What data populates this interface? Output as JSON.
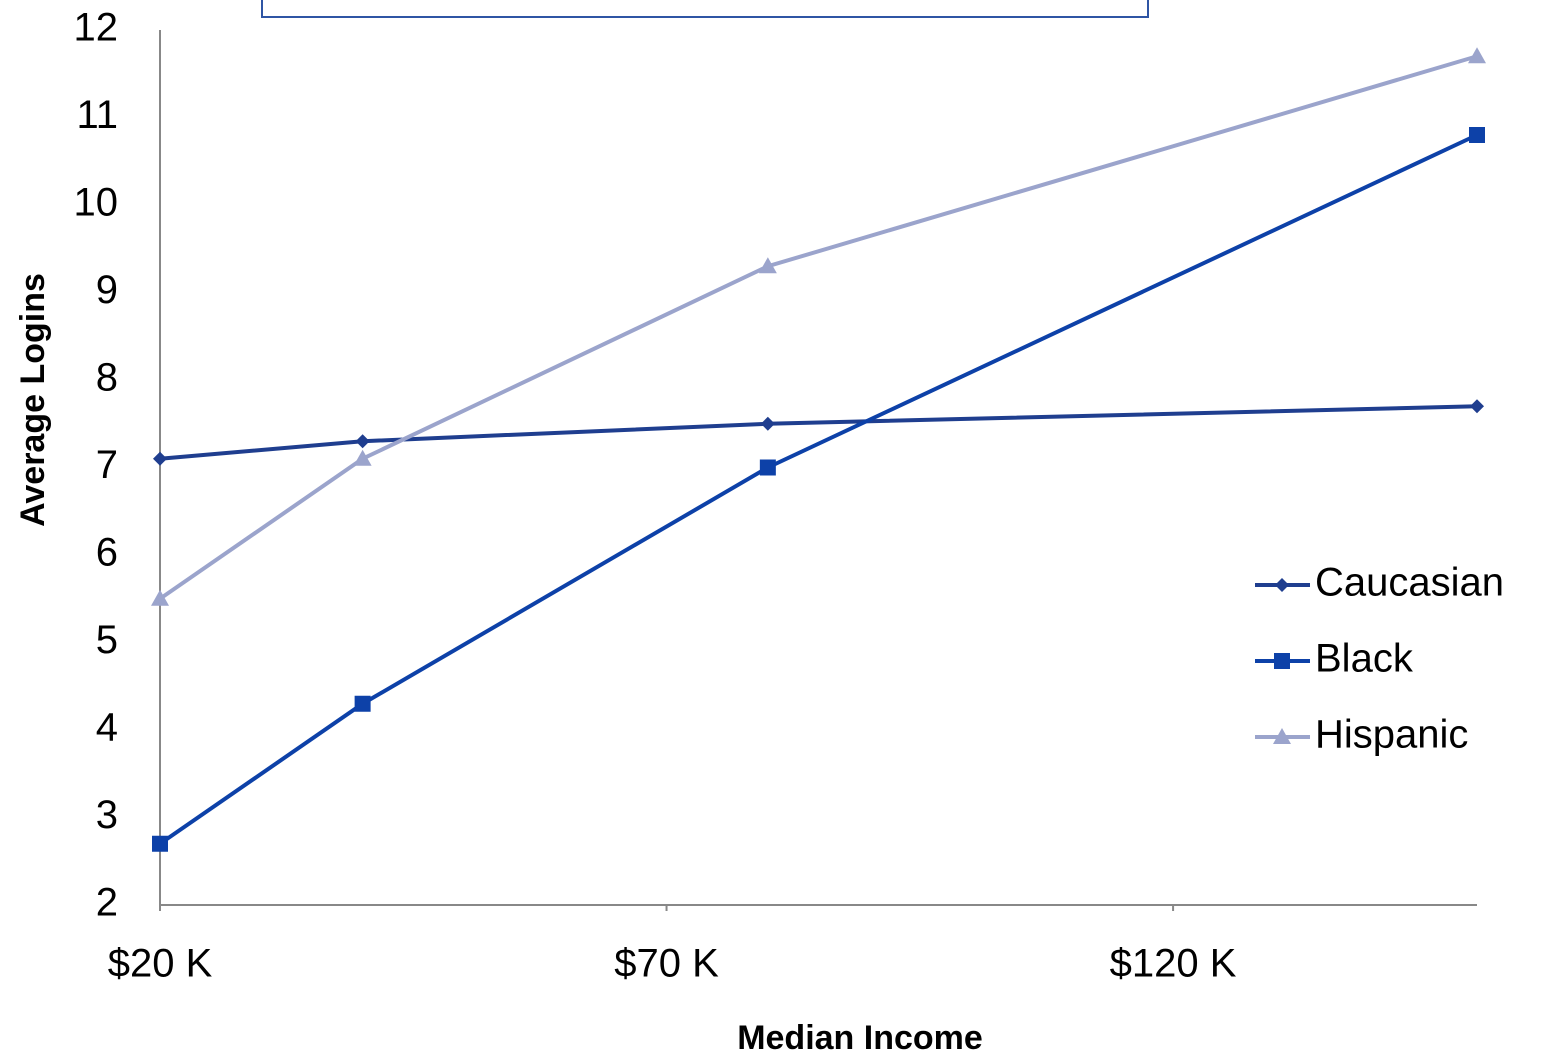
{
  "chart_data": {
    "type": "line",
    "x_label": "Median Income",
    "y_label": "Average  Logins",
    "x": [
      20,
      40,
      80,
      150
    ],
    "xlim": [
      20,
      150
    ],
    "xticks": [
      {
        "value": 20,
        "label": "$20 K"
      },
      {
        "value": 70,
        "label": "$70 K"
      },
      {
        "value": 120,
        "label": "$120 K"
      }
    ],
    "ylim": [
      2,
      12
    ],
    "yticks": [
      2,
      3,
      4,
      5,
      6,
      7,
      8,
      9,
      10,
      11,
      12
    ],
    "grid": false,
    "legend": "right",
    "series": [
      {
        "name": "Caucasian",
        "color": "#1f3e8f",
        "marker": "diamond",
        "values": [
          7.1,
          7.3,
          7.5,
          7.7
        ]
      },
      {
        "name": "Black",
        "color": "#0d41a8",
        "marker": "square",
        "values": [
          2.7,
          4.3,
          7.0,
          10.8
        ]
      },
      {
        "name": "Hispanic",
        "color": "#9ba4cc",
        "marker": "triangle",
        "values": [
          5.5,
          7.1,
          9.3,
          11.7
        ]
      }
    ]
  }
}
